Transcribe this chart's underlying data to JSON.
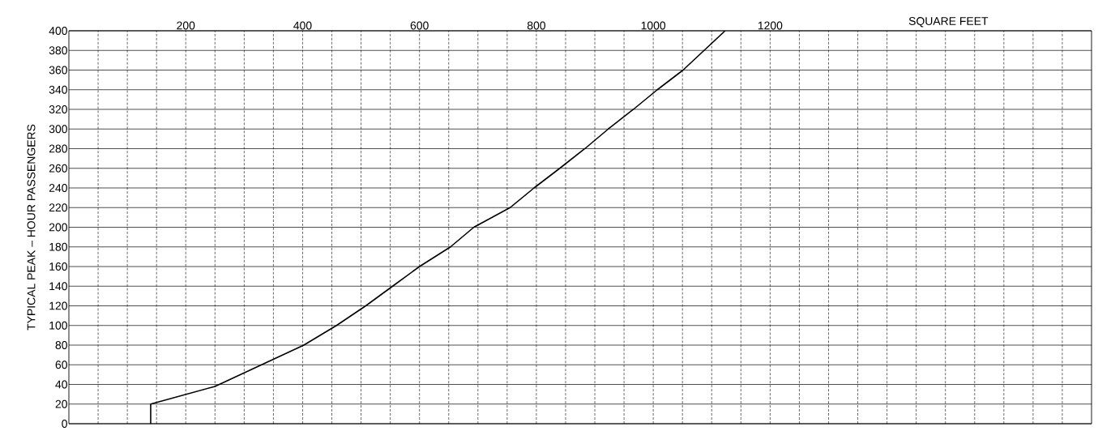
{
  "chart_data": {
    "type": "line",
    "xlabel": "SQUARE FEET",
    "ylabel": "TYPICAL PEAK – HOUR PASSENGERS",
    "x": [
      140,
      140,
      250,
      402,
      458,
      508,
      554,
      600,
      653,
      693,
      755,
      796,
      840,
      883,
      923,
      966,
      1007,
      1051,
      1087,
      1123
    ],
    "series": [
      {
        "color": "#000000",
        "values": [
          0,
          20,
          38,
          80,
          100,
          120,
          140,
          160,
          180,
          200,
          220,
          240,
          260,
          280,
          300,
          320,
          340,
          360,
          380,
          400
        ]
      }
    ],
    "xlim": [
      0,
      1750
    ],
    "ylim": [
      0,
      400
    ],
    "xticks": [
      {
        "value": 50,
        "label": null
      },
      {
        "value": 100,
        "label": null
      },
      {
        "value": 150,
        "label": null
      },
      200,
      {
        "value": 250,
        "label": null
      },
      {
        "value": 300,
        "label": null
      },
      {
        "value": 350,
        "label": null
      },
      400,
      {
        "value": 450,
        "label": null
      },
      {
        "value": 500,
        "label": null
      },
      {
        "value": 550,
        "label": null
      },
      600,
      {
        "value": 650,
        "label": null
      },
      {
        "value": 700,
        "label": null
      },
      {
        "value": 750,
        "label": null
      },
      800,
      {
        "value": 850,
        "label": null
      },
      {
        "value": 900,
        "label": null
      },
      {
        "value": 950,
        "label": null
      },
      1000,
      {
        "value": 1050,
        "label": null
      },
      {
        "value": 1100,
        "label": null
      },
      {
        "value": 1150,
        "label": null
      },
      1200,
      {
        "value": 1250,
        "label": null
      },
      {
        "value": 1300,
        "label": null
      },
      {
        "value": 1350,
        "label": null
      },
      {
        "value": 1400,
        "label": null
      },
      {
        "value": 1450,
        "label": null
      },
      {
        "value": 1500,
        "label": null
      },
      {
        "value": 1550,
        "label": null
      },
      {
        "value": 1600,
        "label": null
      },
      {
        "value": 1650,
        "label": null
      },
      {
        "value": 1700,
        "label": null
      }
    ],
    "yticks": [
      0,
      20,
      40,
      60,
      80,
      100,
      120,
      140,
      160,
      180,
      200,
      220,
      240,
      260,
      280,
      300,
      320,
      340,
      360,
      380,
      400
    ],
    "grid": true,
    "marker": "none",
    "line_style": "solid"
  }
}
